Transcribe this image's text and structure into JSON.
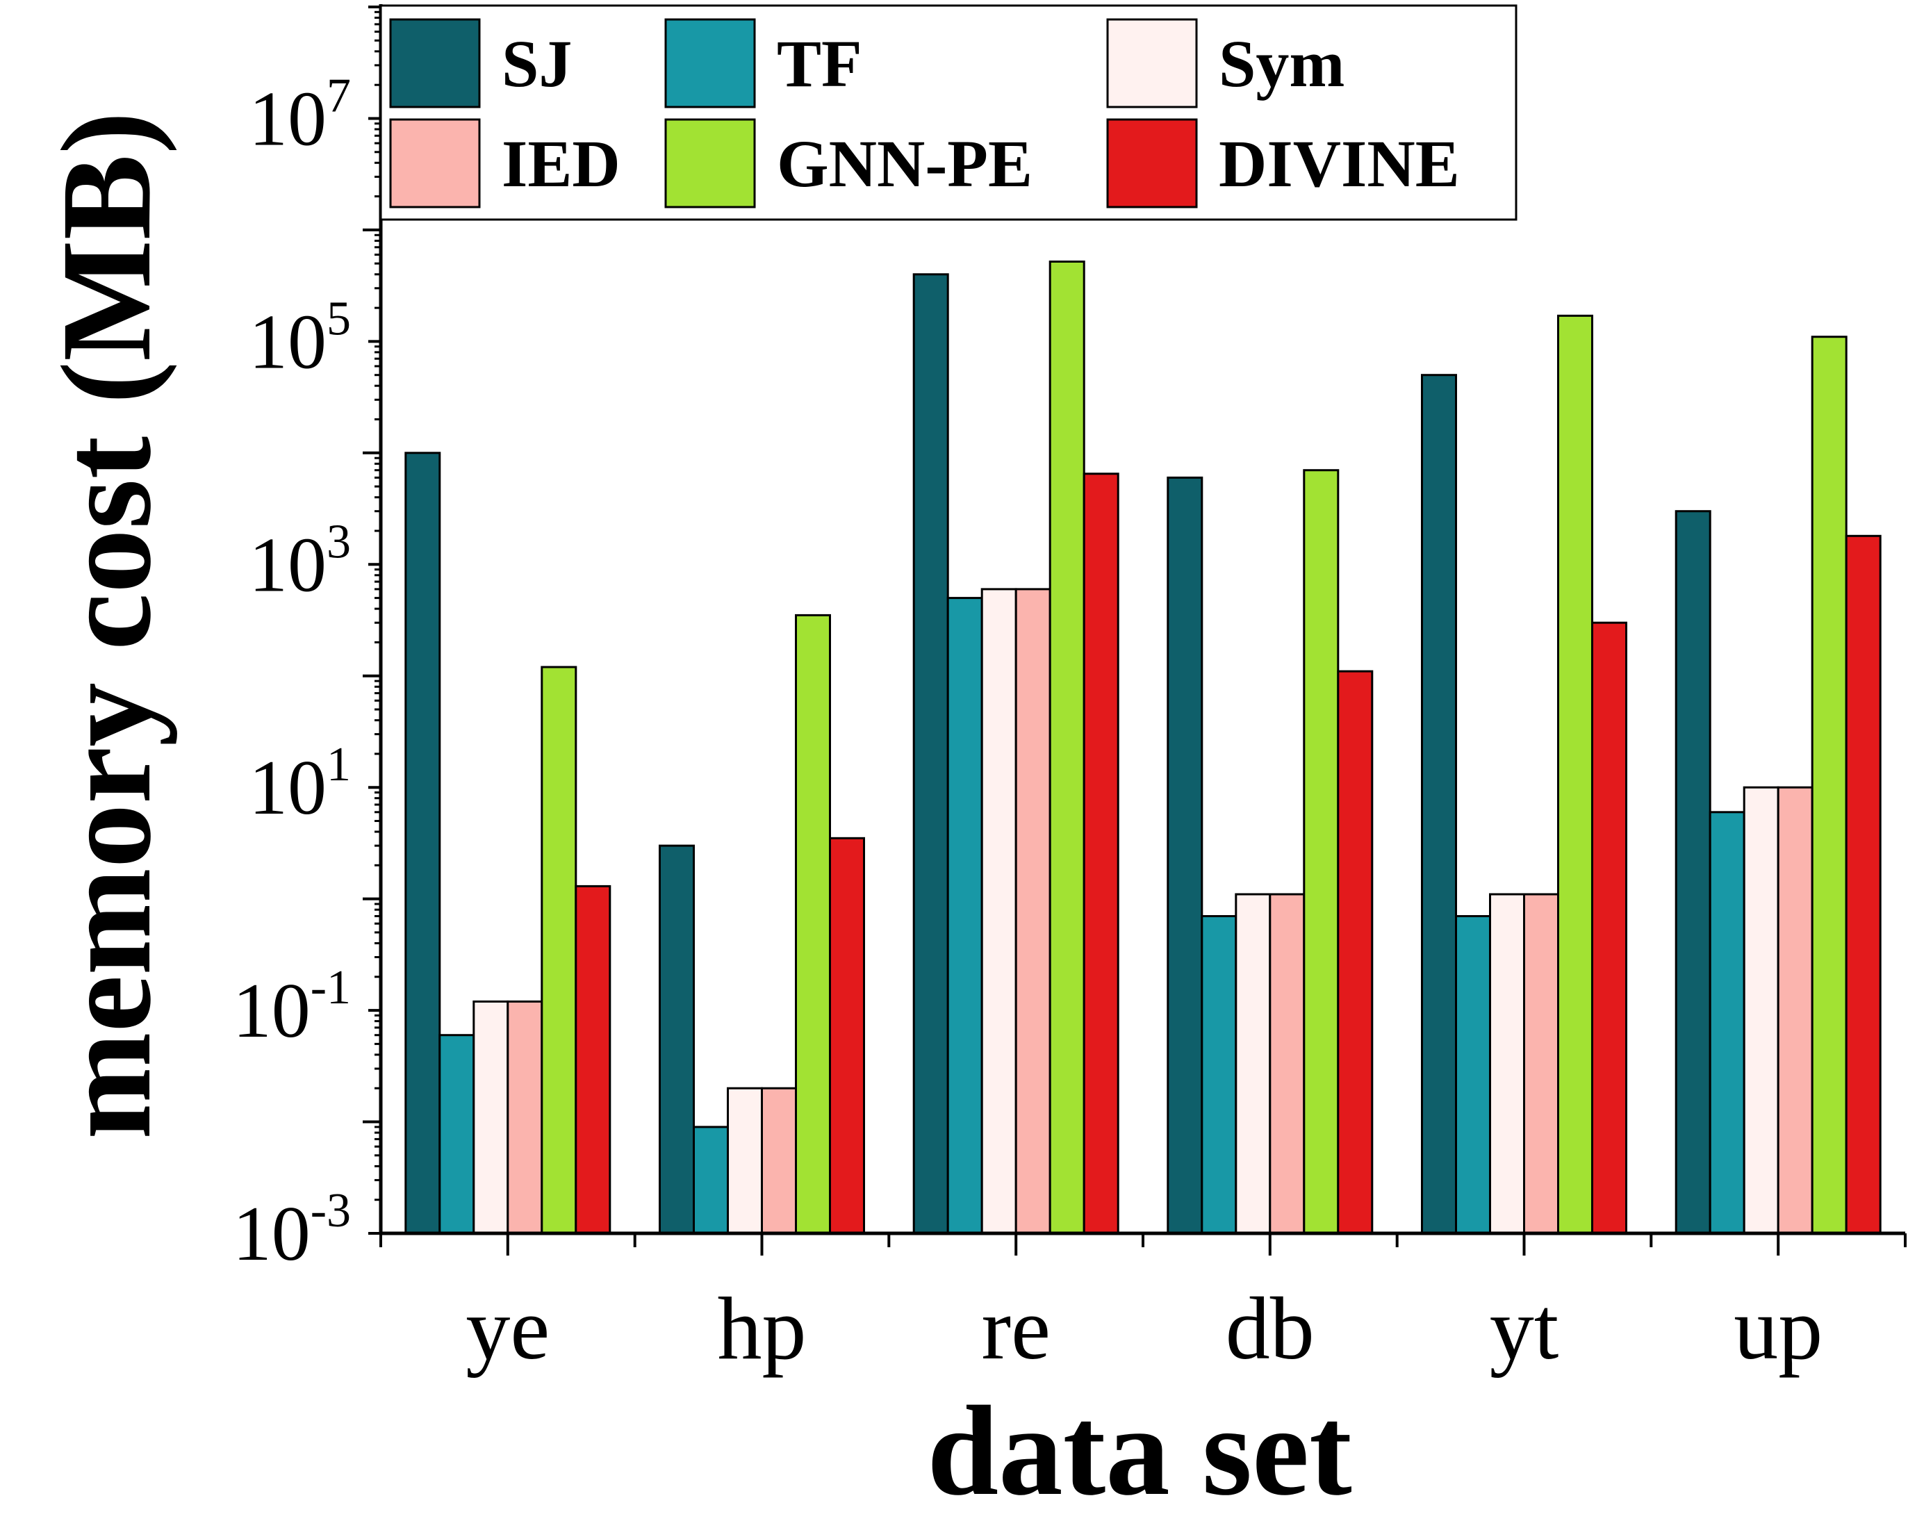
{
  "chart_data": {
    "type": "bar",
    "yscale": "log",
    "title": "",
    "xlabel": "data set",
    "ylabel": "memory cost (MB)",
    "ylim": [
      0.001,
      100000000
    ],
    "major_ticks": [
      {
        "value": 0.001,
        "base": "10",
        "exp": "-3"
      },
      {
        "value": 0.1,
        "base": "10",
        "exp": "-1"
      },
      {
        "value": 10,
        "base": "10",
        "exp": "1"
      },
      {
        "value": 1000,
        "base": "10",
        "exp": "3"
      },
      {
        "value": 100000,
        "base": "10",
        "exp": "5"
      },
      {
        "value": 10000000,
        "base": "10",
        "exp": "7"
      }
    ],
    "categories": [
      "ye",
      "hp",
      "re",
      "db",
      "yt",
      "up"
    ],
    "legend_position": "top",
    "series": [
      {
        "name": "SJ",
        "color": "#0f5f6a",
        "values": [
          10000,
          3,
          400000,
          6000,
          50000,
          3000
        ]
      },
      {
        "name": "TF",
        "color": "#1898a6",
        "values": [
          0.06,
          0.009,
          500,
          0.7,
          0.7,
          6
        ]
      },
      {
        "name": "Sym",
        "color": "#fff2f0",
        "values": [
          0.12,
          0.02,
          600,
          1.1,
          1.1,
          10
        ]
      },
      {
        "name": "IED",
        "color": "#fbb4ae",
        "values": [
          0.12,
          0.02,
          600,
          1.1,
          1.1,
          10
        ]
      },
      {
        "name": "GNN-PE",
        "color": "#a2e233",
        "values": [
          120,
          350,
          520000,
          7000,
          170000,
          110000
        ]
      },
      {
        "name": "DIVINE",
        "color": "#e31a1c",
        "values": [
          1.3,
          3.5,
          6500,
          110,
          300,
          1800
        ]
      }
    ]
  }
}
